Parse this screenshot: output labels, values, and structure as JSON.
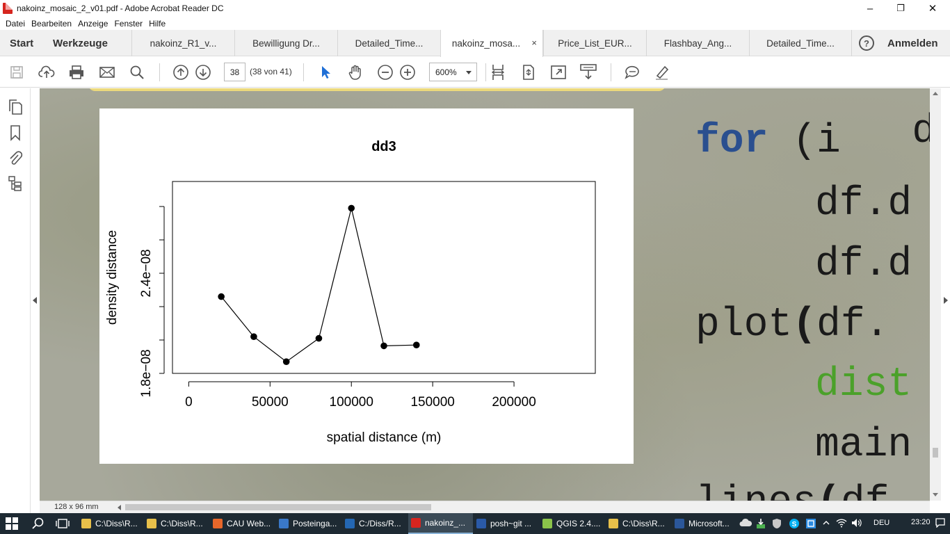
{
  "window": {
    "title": "nakoinz_mosaic_2_v01.pdf - Adobe Acrobat Reader DC",
    "minimize": "–",
    "maximize": "❐",
    "close": "✕"
  },
  "menu": [
    "Datei",
    "Bearbeiten",
    "Anzeige",
    "Fenster",
    "Hilfe"
  ],
  "tabs": {
    "start": "Start",
    "tools": "Werkzeuge",
    "documents": [
      {
        "label": "nakoinz_R1_v..."
      },
      {
        "label": "Bewilligung Dr..."
      },
      {
        "label": "Detailed_Time..."
      },
      {
        "label": "nakoinz_mosa...",
        "close": "×"
      },
      {
        "label": "Price_List_EUR..."
      },
      {
        "label": "Flashbay_Ang..."
      },
      {
        "label": "Detailed_Time..."
      }
    ],
    "help": "?",
    "signin": "Anmelden"
  },
  "toolbar": {
    "page_number": "38",
    "page_count": "(38 von 41)",
    "zoom": "600%"
  },
  "chart_data": {
    "type": "line",
    "title": "dd3",
    "xlabel": "spatial distance (m)",
    "ylabel": "density distance",
    "x": [
      20000,
      40000,
      60000,
      80000,
      100000,
      120000,
      140000
    ],
    "y": [
      2.26e-08,
      2.02e-08,
      1.87e-08,
      2.01e-08,
      2.79e-08,
      1.965e-08,
      1.97e-08
    ],
    "xlim": [
      -10000,
      250000
    ],
    "ylim": [
      1.8e-08,
      2.95e-08
    ],
    "xticks": [
      0,
      50000,
      100000,
      150000,
      200000
    ],
    "xticklabels": [
      "0",
      "50000",
      "100000",
      "150000",
      "200000"
    ],
    "yticks": [
      1.8e-08,
      2e-08,
      2.2e-08,
      2.4e-08,
      2.6e-08,
      2.8e-08
    ],
    "yticklabels": [
      "1.8e−08",
      "",
      "",
      "2.4e−08",
      "",
      ""
    ],
    "grid": false,
    "legend": "none"
  },
  "code_fragment": {
    "line1": "dz s",
    "line2_kw": "for",
    "line2_rest": " (i",
    "line3": "df.d",
    "line4": "df.d",
    "line5_a": "plot",
    "line5_b": "(",
    "line5_c": "df.",
    "line6": "dist",
    "line7": "main",
    "line8_a": "lines",
    "line8_b": "(",
    "line8_c": "df"
  },
  "statusbar": {
    "page_size": "128 x 96 mm"
  },
  "taskbar": {
    "items": [
      {
        "label": "C:\\Diss\\R...",
        "color": "#e8c04a"
      },
      {
        "label": "C:\\Diss\\R...",
        "color": "#e8c04a"
      },
      {
        "label": "CAU Web...",
        "color": "#e8672a"
      },
      {
        "label": "Posteinga...",
        "color": "#3a78c8"
      },
      {
        "label": "C:/Diss/R...",
        "color": "#2467b3"
      },
      {
        "label": "nakoinz_...",
        "color": "#d6251f"
      },
      {
        "label": "posh~git ...",
        "color": "#2a5aa8"
      },
      {
        "label": "QGIS 2.4....",
        "color": "#8bc34a"
      },
      {
        "label": "C:\\Diss\\R...",
        "color": "#e8c04a"
      },
      {
        "label": "Microsoft...",
        "color": "#2b579a"
      }
    ],
    "language": "DEU",
    "time": "23:20"
  }
}
